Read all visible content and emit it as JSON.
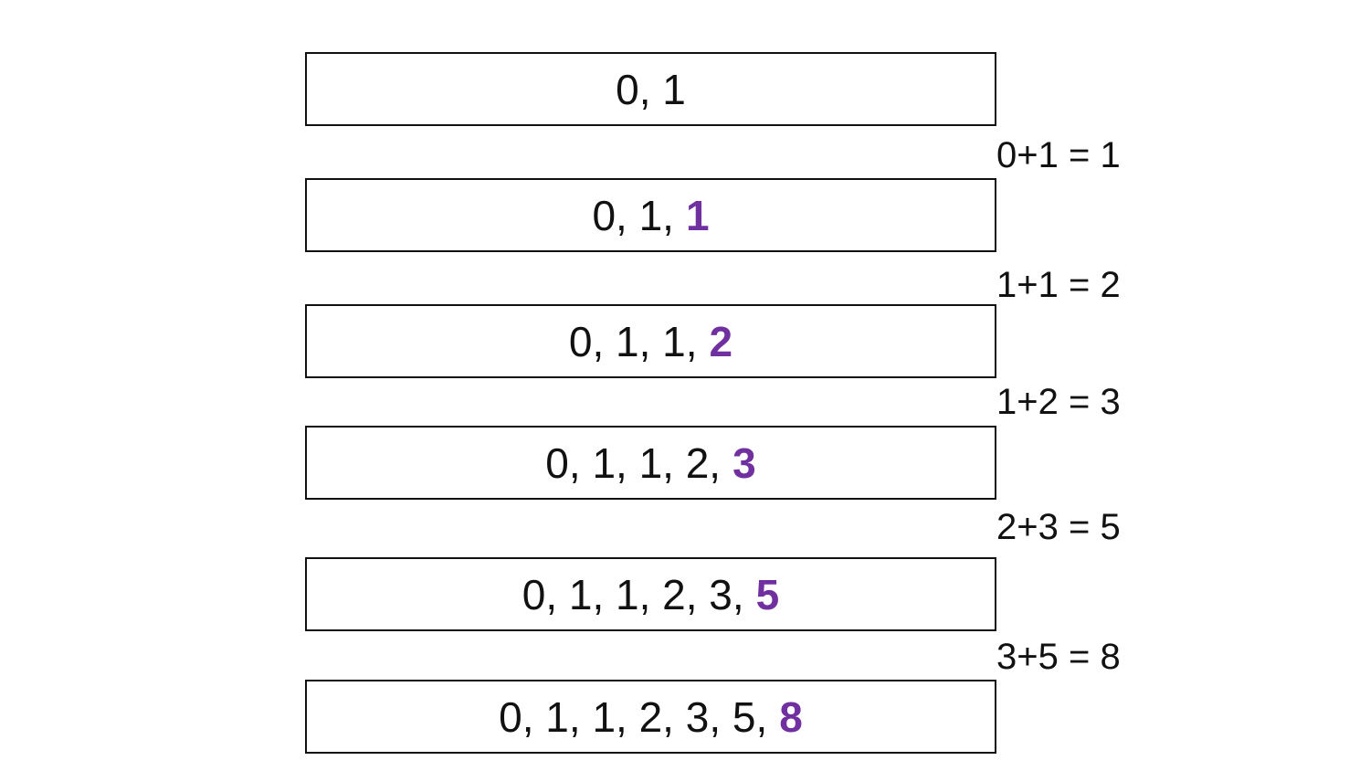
{
  "rows": [
    {
      "sequence": "0, 1"
    },
    {
      "sequence": "0, 1,",
      "new": "1"
    },
    {
      "sequence": "0, 1, 1,",
      "new": "2"
    },
    {
      "sequence": "0, 1, 1, 2,",
      "new": "3"
    },
    {
      "sequence": "0, 1, 1, 2, 3,",
      "new": "5"
    },
    {
      "sequence": "0, 1, 1, 2, 3, 5,",
      "new": "8"
    }
  ],
  "equations": [
    "0+1 = 1",
    "1+1 = 2",
    "1+2 = 3",
    "2+3 = 5",
    "3+5 = 8"
  ]
}
